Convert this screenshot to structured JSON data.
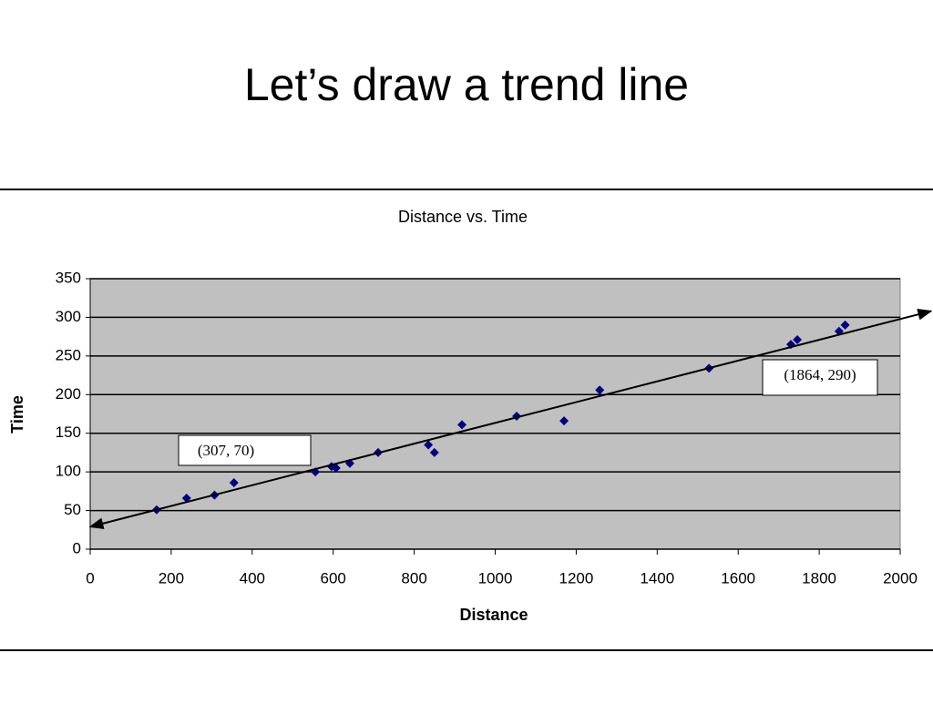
{
  "slide_title": "Let’s draw a trend line",
  "chart_data": {
    "type": "scatter",
    "title": "Distance vs. Time",
    "x_label": "Distance",
    "y_label": "Time",
    "color": "#000080",
    "grid": true,
    "x": [
      164,
      238,
      307,
      355,
      556,
      596,
      607,
      641,
      711,
      835,
      850,
      918,
      1053,
      1170,
      1258,
      1528,
      1730,
      1746,
      1849,
      1864
    ],
    "values": [
      51,
      66,
      70,
      86,
      100,
      107,
      105,
      111,
      125,
      135,
      125,
      161,
      172,
      166,
      206,
      234,
      265,
      271,
      282,
      290
    ],
    "xlim": [
      0,
      2000
    ],
    "xticks": [
      0,
      200,
      400,
      600,
      800,
      1000,
      1200,
      1400,
      1600,
      1800,
      2000
    ],
    "ylim": [
      0,
      350
    ],
    "yticks": [
      0,
      50,
      100,
      150,
      200,
      250,
      300,
      350
    ],
    "trend_line": {
      "x": [
        0,
        2076
      ],
      "y": [
        29,
        308
      ]
    },
    "annotations": [
      {
        "text": "(307, 70)"
      },
      {
        "text": "(1864, 290)"
      }
    ]
  }
}
